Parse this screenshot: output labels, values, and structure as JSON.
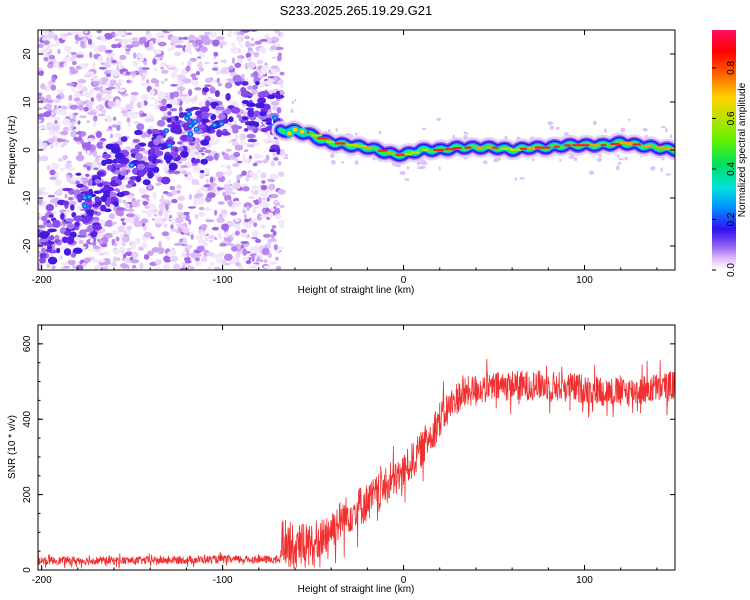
{
  "title": "S233.2025.265.19.29.G21",
  "chart_data": [
    {
      "type": "heatmap",
      "name": "spectrogram",
      "xlabel": "Height of straight line (km)",
      "ylabel": "Frequency (Hz)",
      "xlim": [
        -202,
        150
      ],
      "ylim": [
        -25,
        25
      ],
      "x_ticks": [
        -200,
        -100,
        0,
        100
      ],
      "x_tick_labels": [
        "-200",
        "-100",
        "0",
        "100"
      ],
      "y_ticks": [
        -20,
        -10,
        0,
        10,
        20
      ],
      "y_tick_labels": [
        "-20",
        "-10",
        "0",
        "10",
        "20"
      ],
      "noise_region_x": [
        -202,
        -67
      ],
      "trend_points": [
        [
          -200,
          -20
        ],
        [
          -180,
          -13
        ],
        [
          -160,
          -6
        ],
        [
          -140,
          0
        ],
        [
          -120,
          4
        ],
        [
          -100,
          7
        ],
        [
          -80,
          9
        ],
        [
          -68,
          5
        ]
      ],
      "ridge_points": [
        [
          -68,
          4
        ],
        [
          -60,
          4
        ],
        [
          -50,
          3
        ],
        [
          -45,
          2
        ],
        [
          -40,
          1.5
        ],
        [
          -30,
          1
        ],
        [
          -20,
          0.5
        ],
        [
          -10,
          -0.5
        ],
        [
          -5,
          -1
        ],
        [
          0,
          -1
        ],
        [
          10,
          0
        ],
        [
          20,
          0
        ],
        [
          30,
          0.5
        ],
        [
          40,
          0.5
        ],
        [
          50,
          0.5
        ],
        [
          60,
          0
        ],
        [
          70,
          0.5
        ],
        [
          80,
          0.5
        ],
        [
          90,
          1
        ],
        [
          100,
          1
        ],
        [
          110,
          1
        ],
        [
          120,
          1.5
        ],
        [
          130,
          1
        ],
        [
          140,
          0.5
        ],
        [
          150,
          0
        ]
      ],
      "colorbar": {
        "label": "Normalized spectral amplitude",
        "range": [
          0,
          0.95
        ],
        "ticks": [
          0.0,
          0.2,
          0.4,
          0.6,
          0.8
        ],
        "tick_labels": [
          "0.0",
          "0.2",
          "0.4",
          "0.6",
          "0.8"
        ]
      }
    },
    {
      "type": "line",
      "name": "snr",
      "xlabel": "Height of straight line (km)",
      "ylabel": "SNR (10 * v/v)",
      "xlim": [
        -202,
        150
      ],
      "ylim": [
        0,
        650
      ],
      "x_ticks": [
        -200,
        -100,
        0,
        100
      ],
      "x_tick_labels": [
        "-200",
        "-100",
        "0",
        "100"
      ],
      "y_ticks": [
        0,
        200,
        400,
        600
      ],
      "y_tick_labels": [
        "0",
        "200",
        "400",
        "600"
      ],
      "color": "#f03030",
      "series": [
        {
          "name": "SNR",
          "envelope": [
            [
              -202,
              25
            ],
            [
              -150,
              25
            ],
            [
              -100,
              28
            ],
            [
              -68,
              28
            ],
            [
              -67,
              80
            ],
            [
              -60,
              60
            ],
            [
              -50,
              70
            ],
            [
              -40,
              110
            ],
            [
              -30,
              150
            ],
            [
              -20,
              180
            ],
            [
              -10,
              220
            ],
            [
              0,
              260
            ],
            [
              10,
              320
            ],
            [
              20,
              400
            ],
            [
              30,
              460
            ],
            [
              40,
              480
            ],
            [
              60,
              490
            ],
            [
              80,
              490
            ],
            [
              100,
              480
            ],
            [
              120,
              470
            ],
            [
              150,
              490
            ]
          ],
          "noise_amplitude": [
            [
              -202,
              12
            ],
            [
              -68,
              12
            ],
            [
              -67,
              70
            ],
            [
              -30,
              60
            ],
            [
              0,
              55
            ],
            [
              20,
              55
            ],
            [
              40,
              45
            ],
            [
              150,
              45
            ]
          ]
        }
      ]
    }
  ]
}
